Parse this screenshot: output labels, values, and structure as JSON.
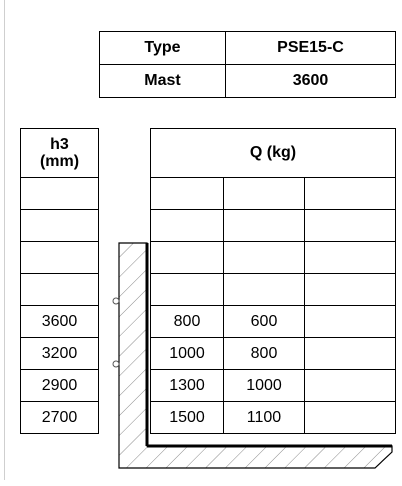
{
  "info": {
    "type_label": "Type",
    "type_value": "PSE15-C",
    "mast_label": "Mast",
    "mast_value": "3600"
  },
  "h3": {
    "header": "h3\n(mm)",
    "header_line1": "h3",
    "header_line2": "(mm)",
    "rows": [
      "",
      "",
      "",
      "",
      "3600",
      "3200",
      "2900",
      "2700"
    ]
  },
  "q": {
    "header": "Q (kg)",
    "rows": [
      [
        "",
        "",
        ""
      ],
      [
        "",
        "",
        ""
      ],
      [
        "",
        "",
        ""
      ],
      [
        "",
        "",
        ""
      ],
      [
        "800",
        "600",
        ""
      ],
      [
        "1000",
        "800",
        ""
      ],
      [
        "1300",
        "1000",
        ""
      ],
      [
        "1500",
        "1100",
        ""
      ]
    ]
  },
  "diagram": {
    "icon": "fork-profile-icon"
  }
}
